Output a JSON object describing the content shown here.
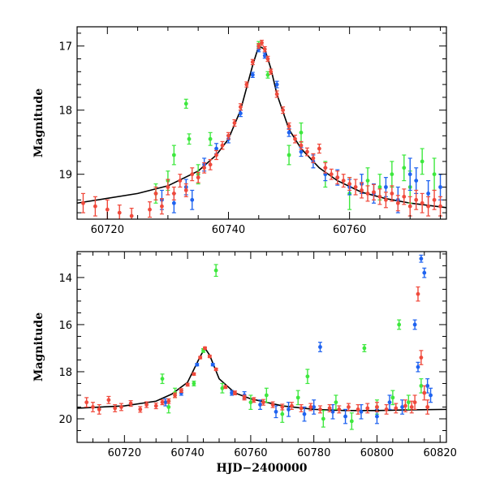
{
  "chart_data": [
    {
      "type": "scatter",
      "title": "",
      "xlabel": "",
      "ylabel": "Magnitude",
      "xlim": [
        60715,
        60776
      ],
      "ylim": [
        16.7,
        19.7
      ],
      "y_inverted": true,
      "x_ticks": [
        60720,
        60740,
        60760
      ],
      "y_ticks": [
        17,
        18,
        19
      ],
      "grid": false,
      "legend": "none",
      "colors": {
        "red": "#f04a3c",
        "blue": "#1f63f0",
        "green": "#3ee83e",
        "model": "#000000"
      },
      "model_curve": {
        "x": [
          60715,
          60725,
          60730,
          60735,
          60738,
          60740,
          60742,
          60744,
          60745,
          60746,
          60747,
          60748,
          60750,
          60752,
          60755,
          60758,
          60762,
          60766,
          60770,
          60776
        ],
        "y": [
          19.45,
          19.3,
          19.18,
          18.95,
          18.7,
          18.45,
          18.0,
          17.3,
          17.0,
          17.05,
          17.35,
          17.75,
          18.3,
          18.6,
          18.9,
          19.1,
          19.28,
          19.38,
          19.45,
          19.52
        ]
      },
      "series": [
        {
          "color": "red",
          "x": [
            60716,
            60718,
            60720,
            60722,
            60724,
            60727,
            60728,
            60729,
            60730,
            60731,
            60732,
            60733,
            60734,
            60735,
            60736,
            60737,
            60738,
            60739,
            60740,
            60741,
            60742,
            60743,
            60744,
            60745,
            60745.5,
            60746,
            60746.5,
            60747,
            60748,
            60749,
            60750,
            60751,
            60752,
            60753,
            60754,
            60755,
            60756,
            60757,
            60758,
            60759,
            60760,
            60761,
            60762,
            60763,
            60764,
            60765,
            60766,
            60767,
            60768,
            60769,
            60770,
            60771,
            60772,
            60773,
            60774,
            60775
          ],
          "y": [
            19.45,
            19.5,
            19.55,
            19.6,
            19.65,
            19.55,
            19.3,
            19.5,
            19.2,
            19.3,
            19.1,
            19.25,
            19.0,
            19.05,
            18.9,
            18.85,
            18.7,
            18.55,
            18.4,
            18.2,
            17.95,
            17.6,
            17.25,
            17.0,
            16.95,
            17.05,
            17.2,
            17.4,
            17.75,
            18.0,
            18.25,
            18.45,
            18.55,
            18.65,
            18.75,
            18.6,
            18.9,
            19.0,
            19.05,
            19.1,
            19.15,
            19.2,
            19.25,
            19.3,
            19.28,
            19.35,
            19.4,
            19.3,
            19.45,
            19.35,
            19.5,
            19.4,
            19.45,
            19.5,
            19.4,
            19.5
          ],
          "err": [
            0.15,
            0.15,
            0.15,
            0.12,
            0.12,
            0.12,
            0.1,
            0.12,
            0.12,
            0.1,
            0.1,
            0.1,
            0.1,
            0.08,
            0.08,
            0.08,
            0.07,
            0.06,
            0.05,
            0.05,
            0.05,
            0.04,
            0.04,
            0.04,
            0.04,
            0.04,
            0.04,
            0.04,
            0.05,
            0.05,
            0.05,
            0.06,
            0.06,
            0.06,
            0.07,
            0.07,
            0.08,
            0.08,
            0.1,
            0.1,
            0.1,
            0.12,
            0.12,
            0.12,
            0.12,
            0.12,
            0.12,
            0.12,
            0.12,
            0.12,
            0.15,
            0.15,
            0.15,
            0.15,
            0.15,
            0.15
          ]
        },
        {
          "color": "blue",
          "x": [
            60729,
            60731,
            60733,
            60734,
            60736,
            60738,
            60740,
            60742,
            60744,
            60745,
            60746,
            60748,
            60750,
            60752,
            60754,
            60756,
            60758,
            60760,
            60762,
            60764,
            60766,
            60768,
            60770,
            60771,
            60773,
            60775
          ],
          "y": [
            19.4,
            19.45,
            19.2,
            19.4,
            18.85,
            18.6,
            18.45,
            18.05,
            17.45,
            17.05,
            17.15,
            17.6,
            18.35,
            18.65,
            18.8,
            19.0,
            19.05,
            19.2,
            19.15,
            19.3,
            19.2,
            19.4,
            19.0,
            19.1,
            19.3,
            19.2
          ],
          "err": [
            0.15,
            0.15,
            0.12,
            0.15,
            0.1,
            0.08,
            0.06,
            0.05,
            0.04,
            0.04,
            0.04,
            0.05,
            0.06,
            0.07,
            0.1,
            0.1,
            0.12,
            0.12,
            0.15,
            0.15,
            0.15,
            0.2,
            0.25,
            0.2,
            0.2,
            0.2
          ]
        },
        {
          "color": "green",
          "x": [
            60728,
            60730,
            60731,
            60733,
            60733.5,
            60735,
            60737,
            60745,
            60746.5,
            60750,
            60752,
            60756,
            60760,
            60763,
            60765,
            60767,
            60769,
            60770,
            60772,
            60774
          ],
          "y": [
            19.3,
            19.1,
            18.7,
            17.9,
            18.45,
            19.0,
            18.45,
            16.98,
            17.45,
            18.7,
            18.35,
            19.0,
            19.3,
            19.1,
            19.2,
            19.0,
            18.9,
            19.2,
            18.8,
            19.0
          ],
          "err": [
            0.15,
            0.15,
            0.15,
            0.07,
            0.08,
            0.15,
            0.1,
            0.05,
            0.05,
            0.15,
            0.15,
            0.2,
            0.25,
            0.2,
            0.2,
            0.2,
            0.2,
            0.25,
            0.2,
            0.25
          ]
        }
      ]
    },
    {
      "type": "scatter",
      "title": "",
      "xlabel": "HJD−2400000",
      "ylabel": "Magnitude",
      "xlim": [
        60705,
        60822
      ],
      "ylim": [
        12.9,
        21.0
      ],
      "y_inverted": true,
      "x_ticks": [
        60720,
        60740,
        60760,
        60780,
        60800,
        60820
      ],
      "y_ticks": [
        14,
        16,
        18,
        20
      ],
      "grid": false,
      "legend": "none",
      "colors": {
        "red": "#f04a3c",
        "blue": "#1f63f0",
        "green": "#3ee83e",
        "model": "#000000"
      },
      "model_curve": {
        "x": [
          60705,
          60720,
          60730,
          60735,
          60740,
          60744,
          60745.5,
          60747,
          60750,
          60755,
          60760,
          60770,
          60780,
          60790,
          60800,
          60810,
          60822
        ],
        "y": [
          19.55,
          19.45,
          19.25,
          18.95,
          18.45,
          17.35,
          17.0,
          17.3,
          18.3,
          18.9,
          19.15,
          19.45,
          19.6,
          19.65,
          19.65,
          19.62,
          19.6
        ]
      },
      "series": [
        {
          "color": "red",
          "x": [
            60708,
            60710,
            60712,
            60715,
            60717,
            60719,
            60722,
            60725,
            60727,
            60730,
            60732,
            60734,
            60736,
            60738,
            60740,
            60742,
            60744,
            60745.5,
            60747,
            60749,
            60752,
            60755,
            60758,
            60761,
            60764,
            60767,
            60770,
            60773,
            60776,
            60779,
            60782,
            60785,
            60788,
            60791,
            60794,
            60797,
            60800,
            60803,
            60806,
            60809,
            60811,
            60812,
            60813,
            60814,
            60815,
            60816
          ],
          "y": [
            19.3,
            19.5,
            19.6,
            19.2,
            19.55,
            19.5,
            19.35,
            19.6,
            19.4,
            19.45,
            19.3,
            19.25,
            19.0,
            18.8,
            18.55,
            18.1,
            17.4,
            17.0,
            17.35,
            17.9,
            18.65,
            18.9,
            19.1,
            19.2,
            19.3,
            19.4,
            19.5,
            19.45,
            19.55,
            19.5,
            19.6,
            19.55,
            19.6,
            19.5,
            19.6,
            19.55,
            19.5,
            19.6,
            19.55,
            19.45,
            19.5,
            19.3,
            14.7,
            17.4,
            18.9,
            19.5
          ],
          "err": [
            0.2,
            0.2,
            0.2,
            0.15,
            0.15,
            0.15,
            0.12,
            0.12,
            0.12,
            0.12,
            0.1,
            0.1,
            0.1,
            0.08,
            0.06,
            0.05,
            0.05,
            0.05,
            0.05,
            0.05,
            0.06,
            0.08,
            0.1,
            0.1,
            0.12,
            0.12,
            0.12,
            0.15,
            0.15,
            0.15,
            0.15,
            0.15,
            0.15,
            0.15,
            0.2,
            0.2,
            0.2,
            0.2,
            0.2,
            0.25,
            0.25,
            0.3,
            0.3,
            0.3,
            0.3,
            0.3
          ]
        },
        {
          "color": "blue",
          "x": [
            60733,
            60738,
            60743,
            60748,
            60754,
            60758,
            60763,
            60768,
            60772,
            60777,
            60780,
            60782,
            60786,
            60790,
            60795,
            60800,
            60804,
            60808,
            60812,
            60813,
            60814,
            60815,
            60816,
            60817
          ],
          "y": [
            19.3,
            18.9,
            17.7,
            17.7,
            18.9,
            19.0,
            19.4,
            19.7,
            19.6,
            19.8,
            19.5,
            16.95,
            19.7,
            19.9,
            19.7,
            19.9,
            19.3,
            19.5,
            16.0,
            17.8,
            13.2,
            13.8,
            18.6,
            19.0
          ],
          "err": [
            0.15,
            0.1,
            0.05,
            0.05,
            0.1,
            0.15,
            0.2,
            0.25,
            0.3,
            0.3,
            0.3,
            0.2,
            0.3,
            0.3,
            0.3,
            0.3,
            0.3,
            0.3,
            0.2,
            0.2,
            0.15,
            0.2,
            0.3,
            0.3
          ]
        },
        {
          "color": "green",
          "x": [
            60732,
            60734,
            60736,
            60742,
            60745,
            60749,
            60751,
            60760,
            60765,
            60770,
            60775,
            60778,
            60783,
            60787,
            60792,
            60796,
            60800,
            60805,
            60807,
            60810,
            60814
          ],
          "y": [
            18.3,
            19.5,
            18.9,
            18.5,
            17.1,
            13.7,
            18.7,
            19.3,
            19.0,
            19.8,
            19.1,
            18.2,
            20.0,
            19.3,
            20.1,
            17.0,
            19.5,
            19.1,
            16.0,
            19.3,
            18.6
          ],
          "err": [
            0.2,
            0.25,
            0.2,
            0.1,
            0.08,
            0.25,
            0.2,
            0.3,
            0.3,
            0.35,
            0.3,
            0.3,
            0.35,
            0.3,
            0.35,
            0.15,
            0.3,
            0.3,
            0.2,
            0.3,
            0.3
          ]
        }
      ]
    }
  ]
}
